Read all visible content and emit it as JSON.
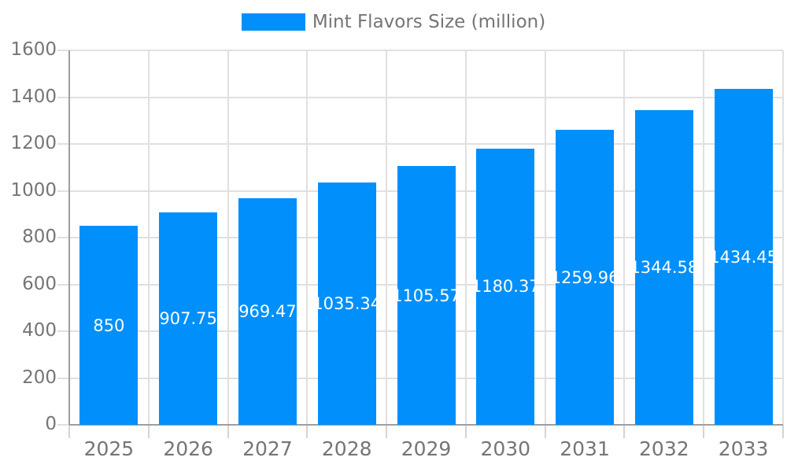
{
  "legend": {
    "label": "Mint Flavors Size (million)"
  },
  "colors": {
    "bar": "#008FFB",
    "bar_value_text": "#ffffff",
    "axis_text": "#757575",
    "legend_text": "#757575",
    "gridline": "#e0e0e0",
    "axis_line": "#9e9e9e",
    "tick": "#d4d4d4",
    "background": "#ffffff"
  },
  "chart_data": {
    "type": "bar",
    "title": "Mint Flavors Size (million)",
    "xlabel": "",
    "ylabel": "",
    "categories": [
      "2025",
      "2026",
      "2027",
      "2028",
      "2029",
      "2030",
      "2031",
      "2032",
      "2033"
    ],
    "series": [
      {
        "name": "Mint Flavors Size (million)",
        "values": [
          850,
          907.75,
          969.47,
          1035.34,
          1105.57,
          1180.37,
          1259.96,
          1344.58,
          1434.45
        ],
        "value_labels": [
          "850",
          "907.75",
          "969.47",
          "1035.34",
          "1105.57",
          "1180.37",
          "1259.96",
          "1344.58",
          "1434.45"
        ]
      }
    ],
    "ylim": [
      0,
      1600
    ],
    "ytick_step": 200,
    "ytick_labels": [
      "0",
      "200",
      "400",
      "600",
      "800",
      "1000",
      "1200",
      "1400",
      "1600"
    ],
    "grid": true,
    "legend_position": "top",
    "value_labels_inside_bars": true
  }
}
